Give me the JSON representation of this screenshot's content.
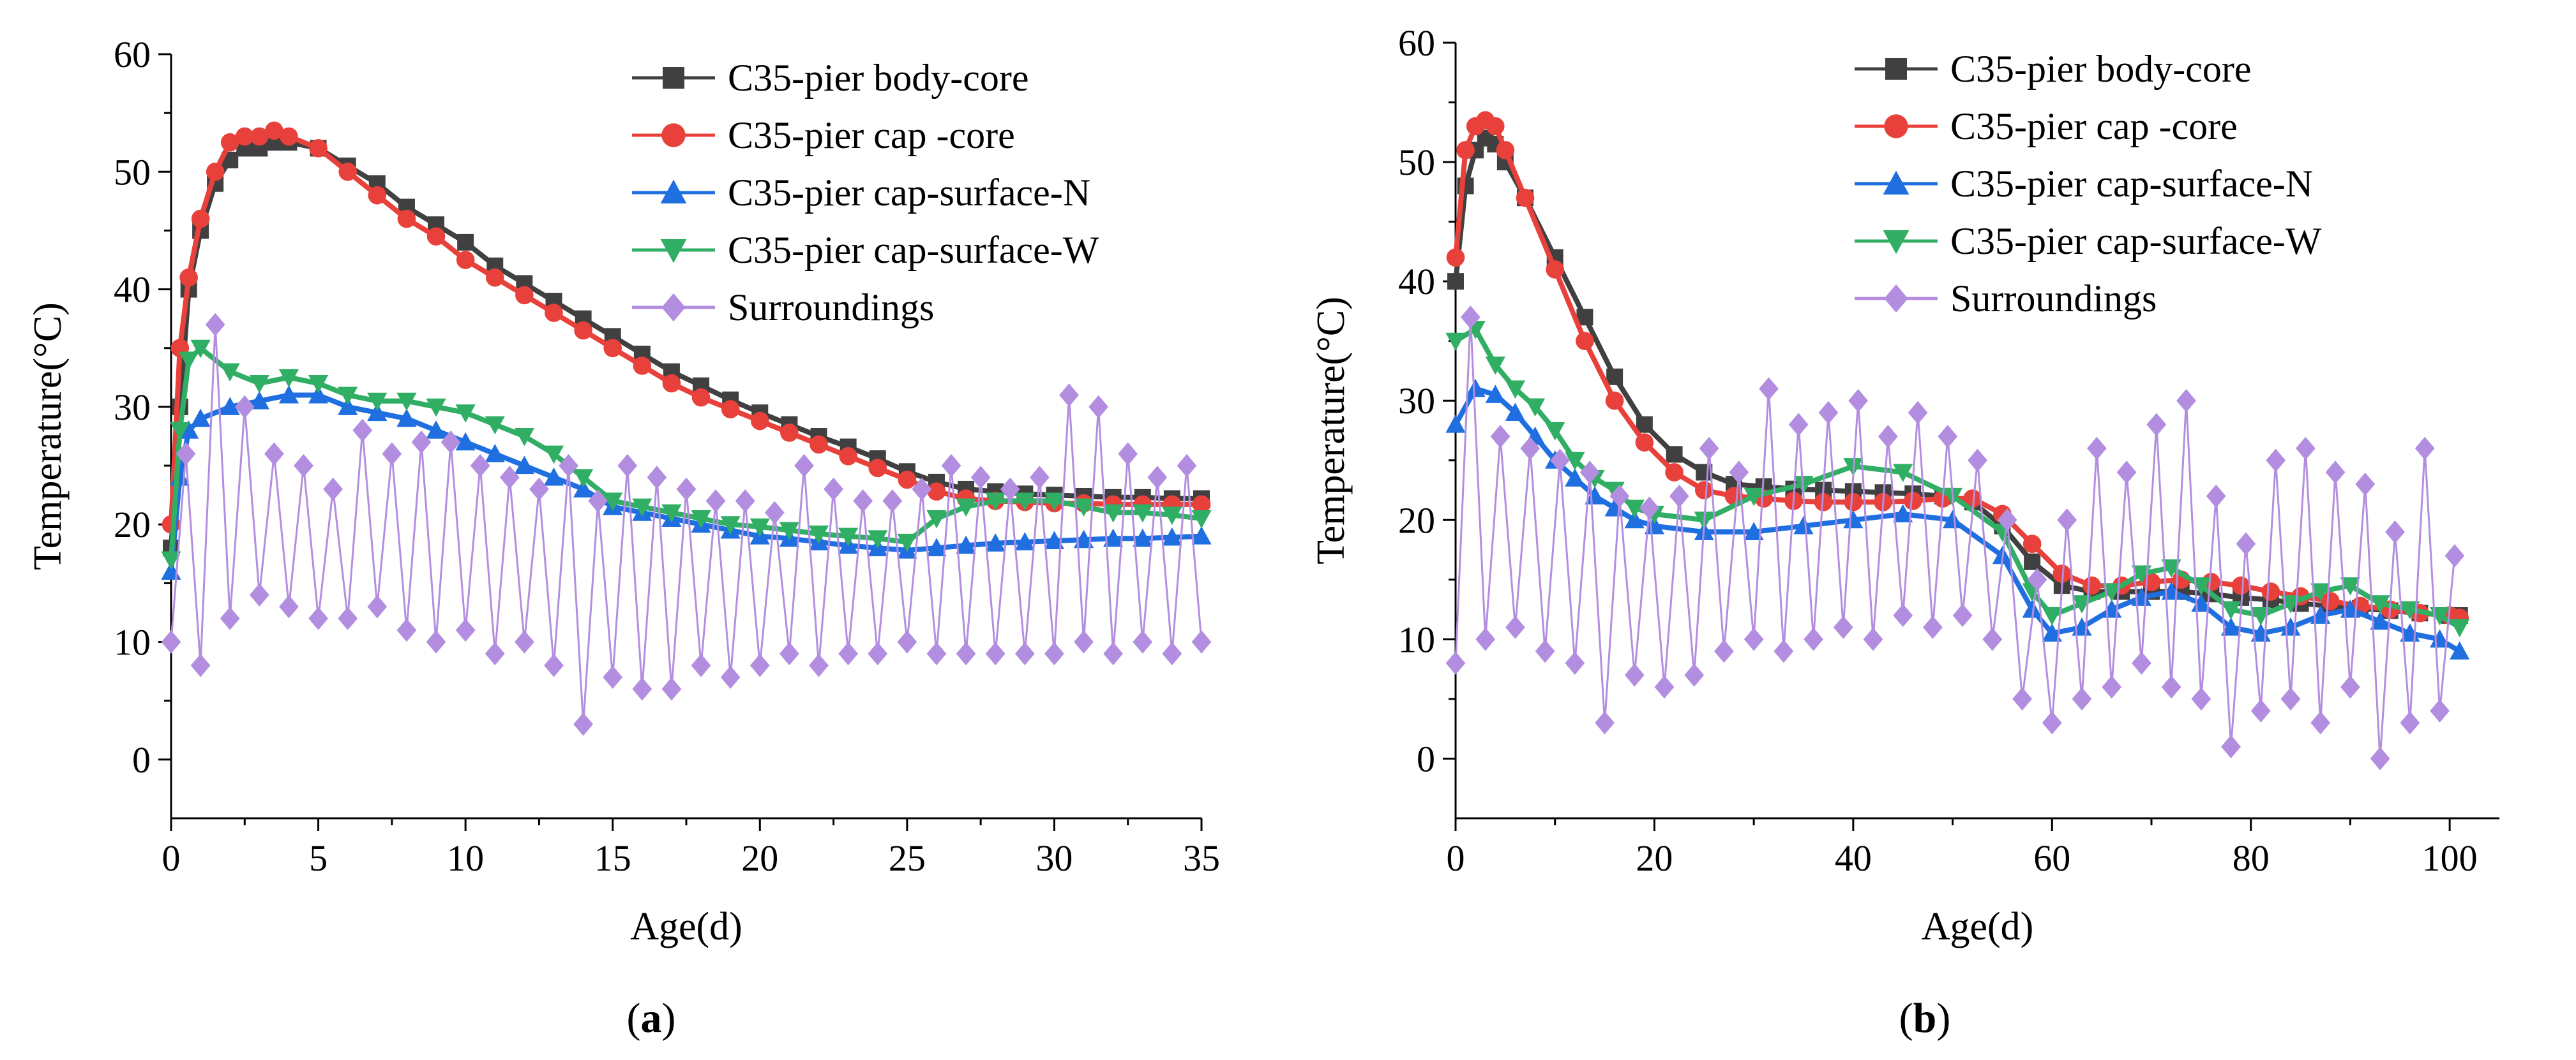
{
  "chart_data": [
    {
      "panel": "a",
      "type": "line",
      "xlabel": "Age(d)",
      "ylabel": "Temperature(°C)",
      "xlim": [
        0,
        35
      ],
      "ylim": [
        -5,
        60
      ],
      "xticks": [
        0,
        5,
        10,
        15,
        20,
        25,
        30,
        35
      ],
      "yticks": [
        0,
        10,
        20,
        30,
        40,
        50,
        60
      ],
      "legend_position": "top-right",
      "series": [
        {
          "name": "C35-pier body-core",
          "color": "#404040",
          "marker": "square",
          "x": [
            0,
            0.3,
            0.6,
            1,
            1.5,
            2,
            2.5,
            3,
            3.5,
            4,
            5,
            6,
            7,
            8,
            9,
            10,
            11,
            12,
            13,
            14,
            15,
            16,
            17,
            18,
            19,
            20,
            21,
            22,
            23,
            24,
            25,
            26,
            27,
            28,
            29,
            30,
            31,
            32,
            33,
            34,
            35
          ],
          "y": [
            18,
            30,
            40,
            45,
            49,
            51,
            52,
            52,
            52.5,
            52.5,
            52,
            50.5,
            49,
            47,
            45.5,
            44,
            42,
            40.5,
            39,
            37.5,
            36,
            34.5,
            33,
            31.8,
            30.6,
            29.5,
            28.5,
            27.5,
            26.6,
            25.6,
            24.5,
            23.6,
            23,
            22.8,
            22.6,
            22.5,
            22.4,
            22.3,
            22.3,
            22.2,
            22.2
          ]
        },
        {
          "name": "C35-pier cap -core",
          "color": "#e8403a",
          "marker": "circle",
          "x": [
            0,
            0.3,
            0.6,
            1,
            1.5,
            2,
            2.5,
            3,
            3.5,
            4,
            5,
            6,
            7,
            8,
            9,
            10,
            11,
            12,
            13,
            14,
            15,
            16,
            17,
            18,
            19,
            20,
            21,
            22,
            23,
            24,
            25,
            26,
            27,
            28,
            29,
            30,
            31,
            32,
            33,
            34,
            35
          ],
          "y": [
            20,
            35,
            41,
            46,
            50,
            52.5,
            53,
            53,
            53.5,
            53,
            52,
            50,
            48,
            46,
            44.5,
            42.5,
            41,
            39.5,
            38,
            36.5,
            35,
            33.5,
            32,
            30.8,
            29.8,
            28.8,
            27.8,
            26.8,
            25.8,
            24.8,
            23.8,
            22.8,
            22.2,
            22,
            21.9,
            21.8,
            21.8,
            21.7,
            21.7,
            21.7,
            21.7
          ]
        },
        {
          "name": "C35-pier cap-surface-N",
          "color": "#1f6fe0",
          "marker": "triangle-up",
          "x": [
            0,
            0.3,
            0.6,
            1,
            2,
            3,
            4,
            5,
            6,
            7,
            8,
            9,
            10,
            11,
            12,
            13,
            14,
            15,
            16,
            17,
            18,
            19,
            20,
            21,
            22,
            23,
            24,
            25,
            26,
            27,
            28,
            29,
            30,
            31,
            32,
            33,
            34,
            35
          ],
          "y": [
            16,
            24,
            28,
            29,
            30,
            30.5,
            31,
            31,
            30,
            29.5,
            29,
            28,
            27,
            26,
            25,
            24,
            23,
            21.5,
            21,
            20.5,
            20,
            19.5,
            19,
            18.8,
            18.5,
            18.2,
            18,
            17.8,
            18,
            18.2,
            18.4,
            18.5,
            18.6,
            18.7,
            18.8,
            18.8,
            18.9,
            19
          ]
        },
        {
          "name": "C35-pier cap-surface-W",
          "color": "#2fae64",
          "marker": "triangle-down",
          "x": [
            0,
            0.3,
            0.6,
            1,
            2,
            3,
            4,
            5,
            6,
            7,
            8,
            9,
            10,
            11,
            12,
            13,
            14,
            15,
            16,
            17,
            18,
            19,
            20,
            21,
            22,
            23,
            24,
            25,
            26,
            27,
            28,
            29,
            30,
            31,
            32,
            33,
            34,
            35
          ],
          "y": [
            17,
            28,
            34,
            35,
            33,
            32,
            32.5,
            32,
            31,
            30.5,
            30.5,
            30,
            29.5,
            28.5,
            27.5,
            26,
            24,
            22,
            21.5,
            21,
            20.5,
            20,
            19.8,
            19.5,
            19.2,
            19,
            18.8,
            18.5,
            20.5,
            21.5,
            22,
            22,
            22,
            21.5,
            21,
            21,
            20.8,
            20.5
          ]
        },
        {
          "name": "Surroundings",
          "color": "#b38ee0",
          "marker": "diamond",
          "x": [
            0,
            0.5,
            1,
            1.5,
            2,
            2.5,
            3,
            3.5,
            4,
            4.5,
            5,
            5.5,
            6,
            6.5,
            7,
            7.5,
            8,
            8.5,
            9,
            9.5,
            10,
            10.5,
            11,
            11.5,
            12,
            12.5,
            13,
            13.5,
            14,
            14.5,
            15,
            15.5,
            16,
            16.5,
            17,
            17.5,
            18,
            18.5,
            19,
            19.5,
            20,
            20.5,
            21,
            21.5,
            22,
            22.5,
            23,
            23.5,
            24,
            24.5,
            25,
            25.5,
            26,
            26.5,
            27,
            27.5,
            28,
            28.5,
            29,
            29.5,
            30,
            30.5,
            31,
            31.5,
            32,
            32.5,
            33,
            33.5,
            34,
            34.5,
            35
          ],
          "y": [
            10,
            26,
            8,
            37,
            12,
            30,
            14,
            26,
            13,
            25,
            12,
            23,
            12,
            28,
            13,
            26,
            11,
            27,
            10,
            27,
            11,
            25,
            9,
            24,
            10,
            23,
            8,
            25,
            3,
            22,
            7,
            25,
            6,
            24,
            6,
            23,
            8,
            22,
            7,
            22,
            8,
            21,
            9,
            25,
            8,
            23,
            9,
            22,
            9,
            22,
            10,
            23,
            9,
            25,
            9,
            24,
            9,
            23,
            9,
            24,
            9,
            31,
            10,
            30,
            9,
            26,
            10,
            24,
            9,
            25,
            10
          ]
        }
      ]
    },
    {
      "panel": "b",
      "type": "line",
      "xlabel": "Age(d)",
      "ylabel": "Temperature(°C)",
      "xlim": [
        0,
        105
      ],
      "ylim": [
        -5,
        60
      ],
      "xticks": [
        0,
        20,
        40,
        60,
        80,
        100
      ],
      "yticks": [
        0,
        10,
        20,
        30,
        40,
        50,
        60
      ],
      "legend_position": "top-right",
      "series": [
        {
          "name": "C35-pier body-core",
          "color": "#404040",
          "marker": "square",
          "x": [
            0,
            1,
            2,
            3,
            4,
            5,
            7,
            10,
            13,
            16,
            19,
            22,
            25,
            28,
            31,
            34,
            37,
            40,
            43,
            46,
            49,
            52,
            55,
            58,
            61,
            64,
            67,
            70,
            73,
            76,
            79,
            82,
            85,
            88,
            91,
            94,
            97,
            100,
            101
          ],
          "y": [
            40,
            48,
            51,
            52,
            51.5,
            50,
            47,
            42,
            37,
            32,
            28,
            25.5,
            24,
            23,
            22.8,
            22.6,
            22.5,
            22.4,
            22.3,
            22.2,
            22,
            21.5,
            19.5,
            16.5,
            14.5,
            14,
            14,
            14,
            14,
            13.8,
            13.5,
            13.3,
            13,
            12.8,
            12.6,
            12.4,
            12.2,
            12,
            12
          ]
        },
        {
          "name": "C35-pier cap -core",
          "color": "#e8403a",
          "marker": "circle",
          "x": [
            0,
            1,
            2,
            3,
            4,
            5,
            7,
            10,
            13,
            16,
            19,
            22,
            25,
            28,
            31,
            34,
            37,
            40,
            43,
            46,
            49,
            52,
            55,
            58,
            61,
            64,
            67,
            70,
            73,
            76,
            79,
            82,
            85,
            88,
            91,
            94,
            97,
            100,
            101
          ],
          "y": [
            42,
            51,
            53,
            53.5,
            53,
            51,
            47,
            41,
            35,
            30,
            26.5,
            24,
            22.5,
            22,
            21.8,
            21.6,
            21.5,
            21.5,
            21.5,
            21.6,
            21.8,
            21.8,
            20.5,
            18,
            15.5,
            14.5,
            14.5,
            14.8,
            15,
            14.8,
            14.5,
            14,
            13.6,
            13.2,
            12.8,
            12.5,
            12.2,
            12,
            11.8
          ]
        },
        {
          "name": "C35-pier cap-surface-N",
          "color": "#1f6fe0",
          "marker": "triangle-up",
          "x": [
            0,
            2,
            4,
            6,
            8,
            10,
            12,
            14,
            16,
            18,
            20,
            25,
            30,
            35,
            40,
            45,
            50,
            55,
            58,
            60,
            63,
            66,
            69,
            72,
            75,
            78,
            81,
            84,
            87,
            90,
            93,
            96,
            99,
            101
          ],
          "y": [
            28,
            31,
            30.5,
            29,
            27,
            25,
            23.5,
            22,
            21,
            20,
            19.5,
            19,
            19,
            19.5,
            20,
            20.5,
            20,
            17,
            12.5,
            10.5,
            11,
            12.5,
            13.5,
            14,
            13,
            11,
            10.5,
            11,
            12,
            12.5,
            11.5,
            10.5,
            10,
            9
          ]
        },
        {
          "name": "C35-pier cap-surface-W",
          "color": "#2fae64",
          "marker": "triangle-down",
          "x": [
            0,
            2,
            4,
            6,
            8,
            10,
            12,
            14,
            16,
            18,
            20,
            25,
            30,
            35,
            40,
            45,
            50,
            55,
            58,
            60,
            63,
            66,
            69,
            72,
            75,
            78,
            81,
            84,
            87,
            90,
            93,
            96,
            99,
            101
          ],
          "y": [
            35,
            36,
            33,
            31,
            29.5,
            27.5,
            25,
            23.5,
            22.5,
            21,
            20.5,
            20,
            22,
            23,
            24.5,
            24,
            22,
            19,
            14,
            12,
            13,
            14,
            15.5,
            16,
            14.5,
            12.5,
            12,
            13,
            14,
            14.5,
            13,
            12.5,
            12,
            11
          ]
        },
        {
          "name": "Surroundings",
          "color": "#b38ee0",
          "marker": "diamond",
          "x": [
            0,
            1.5,
            3,
            4.5,
            6,
            7.5,
            9,
            10.5,
            12,
            13.5,
            15,
            16.5,
            18,
            19.5,
            21,
            22.5,
            24,
            25.5,
            27,
            28.5,
            30,
            31.5,
            33,
            34.5,
            36,
            37.5,
            39,
            40.5,
            42,
            43.5,
            45,
            46.5,
            48,
            49.5,
            51,
            52.5,
            54,
            55.5,
            57,
            58.5,
            60,
            61.5,
            63,
            64.5,
            66,
            67.5,
            69,
            70.5,
            72,
            73.5,
            75,
            76.5,
            78,
            79.5,
            81,
            82.5,
            84,
            85.5,
            87,
            88.5,
            90,
            91.5,
            93,
            94.5,
            96,
            97.5,
            99,
            100.5
          ],
          "y": [
            8,
            37,
            10,
            27,
            11,
            26,
            9,
            25,
            8,
            24,
            3,
            22,
            7,
            21,
            6,
            22,
            7,
            26,
            9,
            24,
            10,
            31,
            9,
            28,
            10,
            29,
            11,
            30,
            10,
            27,
            12,
            29,
            11,
            27,
            12,
            25,
            10,
            20,
            5,
            15,
            3,
            20,
            5,
            26,
            6,
            24,
            8,
            28,
            6,
            30,
            5,
            22,
            1,
            18,
            4,
            25,
            5,
            26,
            3,
            24,
            6,
            23,
            0,
            19,
            3,
            26,
            4,
            17
          ]
        }
      ]
    }
  ],
  "panel_labels": {
    "a": {
      "open": "(",
      "letter": "a",
      "close": ")"
    },
    "b": {
      "open": "(",
      "letter": "b",
      "close": ")"
    }
  }
}
